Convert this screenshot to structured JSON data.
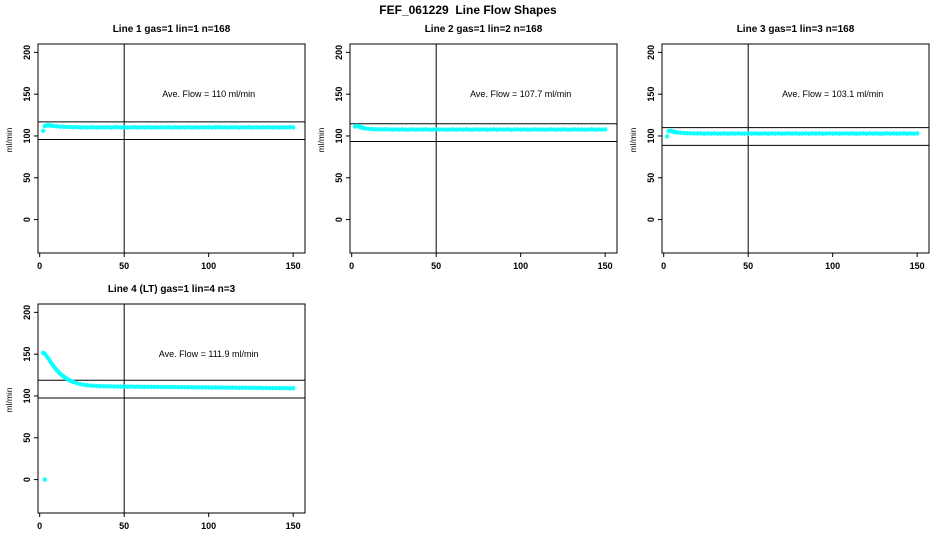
{
  "figure_title": "FEF_061229  Line Flow Shapes",
  "colors": {
    "data_point": "#00ffff",
    "axis": "#000000",
    "background": "#ffffff",
    "text": "#000000"
  },
  "chart_data": [
    {
      "type": "scatter",
      "title": "Line 1 gas=1 lin=1 n=168",
      "annotation": "Ave. Flow =  110  ml/min",
      "ave_flow": 110,
      "ylabel": "ml/min",
      "x_ticks": [
        0,
        50,
        100,
        150
      ],
      "y_ticks": [
        0,
        50,
        100,
        150,
        200
      ],
      "xlim": [
        -1,
        157
      ],
      "ylim": [
        -40,
        210
      ],
      "vline_x": 50,
      "ref_lines": [
        116.9,
        95.7
      ],
      "points": [
        [
          2,
          106.2
        ],
        [
          3,
          111.8
        ],
        [
          4,
          112.6
        ],
        [
          5,
          112.9
        ],
        [
          6,
          112.6
        ],
        [
          7,
          112.3
        ],
        [
          8,
          112.0
        ],
        [
          10,
          111.6
        ],
        [
          12,
          111.3
        ],
        [
          14,
          111.0
        ],
        [
          16,
          110.8
        ],
        [
          18,
          110.6
        ],
        [
          20,
          110.5
        ],
        [
          22,
          110.6
        ],
        [
          24,
          110.2
        ],
        [
          26,
          110.4
        ],
        [
          28,
          110.1
        ],
        [
          30,
          110.5
        ],
        [
          32,
          110.3
        ],
        [
          34,
          110.0
        ],
        [
          36,
          110.4
        ],
        [
          38,
          110.2
        ],
        [
          40,
          110.5
        ],
        [
          42,
          110.1
        ],
        [
          44,
          110.3
        ],
        [
          46,
          110.6
        ],
        [
          48,
          110.2
        ],
        [
          50,
          110.4
        ],
        [
          52,
          110.0
        ],
        [
          54,
          110.3
        ],
        [
          56,
          110.5
        ],
        [
          58,
          110.1
        ],
        [
          60,
          110.4
        ],
        [
          62,
          110.2
        ],
        [
          64,
          110.5
        ],
        [
          66,
          110.0
        ],
        [
          68,
          110.3
        ],
        [
          70,
          110.1
        ],
        [
          72,
          110.4
        ],
        [
          74,
          110.2
        ],
        [
          76,
          110.5
        ],
        [
          78,
          110.1
        ],
        [
          80,
          110.3
        ],
        [
          82,
          110.0
        ],
        [
          84,
          110.4
        ],
        [
          86,
          110.2
        ],
        [
          88,
          110.5
        ],
        [
          90,
          110.1
        ],
        [
          92,
          110.3
        ],
        [
          94,
          110.0
        ],
        [
          96,
          110.4
        ],
        [
          98,
          110.2
        ],
        [
          100,
          110.5
        ],
        [
          102,
          110.1
        ],
        [
          104,
          110.3
        ],
        [
          106,
          110.6
        ],
        [
          108,
          110.2
        ],
        [
          110,
          110.4
        ],
        [
          112,
          110.0
        ],
        [
          114,
          110.3
        ],
        [
          116,
          110.5
        ],
        [
          118,
          110.1
        ],
        [
          120,
          110.4
        ],
        [
          122,
          110.2
        ],
        [
          124,
          110.5
        ],
        [
          126,
          110.0
        ],
        [
          128,
          110.3
        ],
        [
          130,
          110.1
        ],
        [
          132,
          110.4
        ],
        [
          134,
          110.2
        ],
        [
          136,
          110.5
        ],
        [
          138,
          110.1
        ],
        [
          140,
          110.3
        ],
        [
          142,
          110.0
        ],
        [
          144,
          110.4
        ],
        [
          146,
          110.2
        ],
        [
          148,
          110.5
        ],
        [
          150,
          110.3
        ]
      ]
    },
    {
      "type": "scatter",
      "title": "Line 2 gas=1 lin=2 n=168",
      "annotation": "Ave. Flow =  107.7  ml/min",
      "ave_flow": 107.7,
      "ylabel": "ml/min",
      "x_ticks": [
        0,
        50,
        100,
        150
      ],
      "y_ticks": [
        0,
        50,
        100,
        150,
        200
      ],
      "xlim": [
        -1,
        157
      ],
      "ylim": [
        -40,
        210
      ],
      "vline_x": 50,
      "ref_lines": [
        114.6,
        93.4
      ],
      "points": [
        [
          2,
          111.3
        ],
        [
          3,
          112.0
        ],
        [
          4,
          111.6
        ],
        [
          5,
          110.8
        ],
        [
          6,
          110.1
        ],
        [
          7,
          109.5
        ],
        [
          8,
          109.0
        ],
        [
          10,
          108.5
        ],
        [
          12,
          108.2
        ],
        [
          14,
          108.0
        ],
        [
          16,
          107.9
        ],
        [
          18,
          107.8
        ],
        [
          20,
          107.9
        ],
        [
          22,
          107.9
        ],
        [
          24,
          107.5
        ],
        [
          26,
          107.8
        ],
        [
          28,
          107.6
        ],
        [
          30,
          107.9
        ],
        [
          32,
          107.5
        ],
        [
          34,
          107.7
        ],
        [
          36,
          107.9
        ],
        [
          38,
          107.5
        ],
        [
          40,
          107.8
        ],
        [
          42,
          107.6
        ],
        [
          44,
          107.9
        ],
        [
          46,
          107.5
        ],
        [
          48,
          107.7
        ],
        [
          50,
          107.9
        ],
        [
          52,
          107.6
        ],
        [
          54,
          107.8
        ],
        [
          56,
          107.5
        ],
        [
          58,
          107.7
        ],
        [
          60,
          107.9
        ],
        [
          62,
          107.5
        ],
        [
          64,
          107.8
        ],
        [
          66,
          107.6
        ],
        [
          68,
          107.9
        ],
        [
          70,
          107.5
        ],
        [
          72,
          107.7
        ],
        [
          74,
          107.9
        ],
        [
          76,
          107.6
        ],
        [
          78,
          107.8
        ],
        [
          80,
          107.5
        ],
        [
          82,
          107.7
        ],
        [
          84,
          107.9
        ],
        [
          86,
          107.5
        ],
        [
          88,
          107.8
        ],
        [
          90,
          107.6
        ],
        [
          92,
          107.9
        ],
        [
          94,
          107.5
        ],
        [
          96,
          107.7
        ],
        [
          98,
          107.9
        ],
        [
          100,
          107.6
        ],
        [
          102,
          107.8
        ],
        [
          104,
          107.5
        ],
        [
          106,
          107.7
        ],
        [
          108,
          107.9
        ],
        [
          110,
          107.6
        ],
        [
          112,
          107.8
        ],
        [
          114,
          107.5
        ],
        [
          116,
          107.7
        ],
        [
          118,
          107.9
        ],
        [
          120,
          107.5
        ],
        [
          122,
          107.8
        ],
        [
          124,
          107.6
        ],
        [
          126,
          107.9
        ],
        [
          128,
          107.5
        ],
        [
          130,
          107.7
        ],
        [
          132,
          107.9
        ],
        [
          134,
          107.6
        ],
        [
          136,
          107.8
        ],
        [
          138,
          107.5
        ],
        [
          140,
          107.7
        ],
        [
          142,
          107.9
        ],
        [
          144,
          107.5
        ],
        [
          146,
          107.8
        ],
        [
          148,
          107.6
        ],
        [
          150,
          107.8
        ]
      ]
    },
    {
      "type": "scatter",
      "title": "Line 3 gas=1 lin=3 n=168",
      "annotation": "Ave. Flow =  103.1  ml/min",
      "ave_flow": 103.1,
      "ylabel": "ml/min",
      "x_ticks": [
        0,
        50,
        100,
        150
      ],
      "y_ticks": [
        0,
        50,
        100,
        150,
        200
      ],
      "xlim": [
        -1,
        157
      ],
      "ylim": [
        -40,
        210
      ],
      "vline_x": 50,
      "ref_lines": [
        110.0,
        88.8
      ],
      "points": [
        [
          2,
          99.5
        ],
        [
          3,
          105.8
        ],
        [
          4,
          106.0
        ],
        [
          5,
          105.5
        ],
        [
          6,
          105.0
        ],
        [
          7,
          104.6
        ],
        [
          8,
          104.2
        ],
        [
          10,
          103.8
        ],
        [
          12,
          103.5
        ],
        [
          14,
          103.3
        ],
        [
          16,
          103.1
        ],
        [
          18,
          103.0
        ],
        [
          20,
          103.0
        ],
        [
          22,
          103.1
        ],
        [
          24,
          102.7
        ],
        [
          26,
          103.0
        ],
        [
          28,
          102.8
        ],
        [
          30,
          103.1
        ],
        [
          32,
          102.7
        ],
        [
          34,
          102.9
        ],
        [
          36,
          103.1
        ],
        [
          38,
          102.7
        ],
        [
          40,
          103.0
        ],
        [
          42,
          102.8
        ],
        [
          44,
          103.1
        ],
        [
          46,
          102.7
        ],
        [
          48,
          102.9
        ],
        [
          50,
          103.1
        ],
        [
          52,
          102.8
        ],
        [
          54,
          103.0
        ],
        [
          56,
          102.7
        ],
        [
          58,
          102.9
        ],
        [
          60,
          103.1
        ],
        [
          62,
          102.7
        ],
        [
          64,
          103.0
        ],
        [
          66,
          102.8
        ],
        [
          68,
          103.1
        ],
        [
          70,
          102.7
        ],
        [
          72,
          102.9
        ],
        [
          74,
          103.1
        ],
        [
          76,
          102.8
        ],
        [
          78,
          103.0
        ],
        [
          80,
          102.7
        ],
        [
          82,
          102.9
        ],
        [
          84,
          103.1
        ],
        [
          86,
          102.7
        ],
        [
          88,
          103.0
        ],
        [
          90,
          102.8
        ],
        [
          92,
          103.1
        ],
        [
          94,
          102.7
        ],
        [
          96,
          102.9
        ],
        [
          98,
          103.1
        ],
        [
          100,
          102.8
        ],
        [
          102,
          103.0
        ],
        [
          104,
          102.7
        ],
        [
          106,
          102.9
        ],
        [
          108,
          103.1
        ],
        [
          110,
          102.8
        ],
        [
          112,
          103.0
        ],
        [
          114,
          102.7
        ],
        [
          116,
          102.9
        ],
        [
          118,
          103.1
        ],
        [
          120,
          102.7
        ],
        [
          122,
          103.0
        ],
        [
          124,
          102.8
        ],
        [
          126,
          103.1
        ],
        [
          128,
          102.7
        ],
        [
          130,
          102.9
        ],
        [
          132,
          103.1
        ],
        [
          134,
          102.8
        ],
        [
          136,
          103.0
        ],
        [
          138,
          102.7
        ],
        [
          140,
          102.9
        ],
        [
          142,
          103.1
        ],
        [
          144,
          102.7
        ],
        [
          146,
          103.0
        ],
        [
          148,
          102.8
        ],
        [
          150,
          103.0
        ]
      ]
    },
    {
      "type": "scatter",
      "title": "Line 4 (LT) gas=1 lin=4 n=3",
      "annotation": "Ave. Flow =  111.9  ml/min",
      "ave_flow": 111.9,
      "ylabel": "ml/min",
      "x_ticks": [
        0,
        50,
        100,
        150
      ],
      "y_ticks": [
        0,
        50,
        100,
        150,
        200
      ],
      "xlim": [
        -1,
        157
      ],
      "ylim": [
        -40,
        210
      ],
      "vline_x": 50,
      "ref_lines": [
        118.8,
        97.6
      ],
      "points": [
        [
          3,
          0
        ],
        [
          2,
          151.5
        ],
        [
          3,
          150.5
        ],
        [
          4,
          148.0
        ],
        [
          5,
          145.2
        ],
        [
          6,
          142.0
        ],
        [
          7,
          139.0
        ],
        [
          8,
          136.2
        ],
        [
          9,
          133.6
        ],
        [
          10,
          131.2
        ],
        [
          11,
          129.0
        ],
        [
          12,
          127.0
        ],
        [
          13,
          125.2
        ],
        [
          14,
          123.5
        ],
        [
          15,
          122.0
        ],
        [
          16,
          120.7
        ],
        [
          17,
          119.5
        ],
        [
          18,
          118.4
        ],
        [
          19,
          117.5
        ],
        [
          20,
          116.6
        ],
        [
          22,
          115.2
        ],
        [
          24,
          114.2
        ],
        [
          26,
          113.4
        ],
        [
          28,
          112.8
        ],
        [
          30,
          112.4
        ],
        [
          32,
          112.1
        ],
        [
          34,
          111.9
        ],
        [
          36,
          111.7
        ],
        [
          38,
          111.6
        ],
        [
          40,
          111.5
        ],
        [
          42,
          111.5
        ],
        [
          44,
          111.3
        ],
        [
          46,
          111.4
        ],
        [
          48,
          111.2
        ],
        [
          50,
          111.3
        ],
        [
          52,
          111.1
        ],
        [
          54,
          111.2
        ],
        [
          56,
          111.0
        ],
        [
          58,
          111.1
        ],
        [
          60,
          111.0
        ],
        [
          62,
          110.9
        ],
        [
          64,
          111.0
        ],
        [
          66,
          110.8
        ],
        [
          68,
          110.9
        ],
        [
          70,
          110.8
        ],
        [
          72,
          110.7
        ],
        [
          74,
          110.8
        ],
        [
          76,
          110.6
        ],
        [
          78,
          110.7
        ],
        [
          80,
          110.6
        ],
        [
          82,
          110.5
        ],
        [
          84,
          110.6
        ],
        [
          86,
          110.4
        ],
        [
          88,
          110.5
        ],
        [
          90,
          110.4
        ],
        [
          92,
          110.3
        ],
        [
          94,
          110.4
        ],
        [
          96,
          110.3
        ],
        [
          98,
          110.2
        ],
        [
          100,
          110.3
        ],
        [
          102,
          110.1
        ],
        [
          104,
          110.2
        ],
        [
          106,
          110.1
        ],
        [
          108,
          110.0
        ],
        [
          110,
          110.1
        ],
        [
          112,
          109.9
        ],
        [
          114,
          110.0
        ],
        [
          116,
          109.9
        ],
        [
          118,
          109.8
        ],
        [
          120,
          109.9
        ],
        [
          122,
          109.7
        ],
        [
          124,
          109.8
        ],
        [
          126,
          109.7
        ],
        [
          128,
          109.6
        ],
        [
          130,
          109.7
        ],
        [
          132,
          109.5
        ],
        [
          134,
          109.6
        ],
        [
          136,
          109.5
        ],
        [
          138,
          109.4
        ],
        [
          140,
          109.5
        ],
        [
          142,
          109.3
        ],
        [
          144,
          109.4
        ],
        [
          146,
          109.3
        ],
        [
          148,
          109.2
        ],
        [
          150,
          109.3
        ]
      ]
    }
  ]
}
